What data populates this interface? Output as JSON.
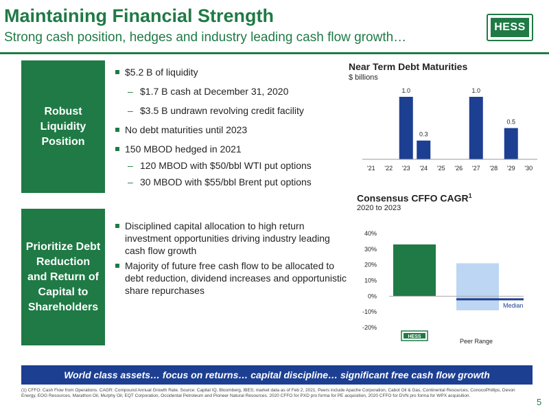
{
  "header": {
    "title": "Maintaining Financial Strength",
    "subtitle": "Strong cash position, hedges and industry leading cash flow growth…"
  },
  "logo": {
    "text": "HESS"
  },
  "sections": [
    {
      "label": "Robust Liquidity Position"
    },
    {
      "label": "Prioritize Debt Reduction and Return of Capital to Shareholders"
    }
  ],
  "liquidity_bullets": [
    {
      "level": 1,
      "text": "$5.2 B of liquidity"
    },
    {
      "level": 2,
      "text": "$1.7 B cash at December 31, 2020"
    },
    {
      "level": 2,
      "text": "$3.5 B undrawn revolving credit facility"
    },
    {
      "level": 1,
      "text": "No debt maturities until 2023"
    },
    {
      "level": 1,
      "text": "150 MBOD hedged in 2021"
    },
    {
      "level": 2,
      "text": "120 MBOD with $50/bbl WTI put options"
    },
    {
      "level": 2,
      "text": "30 MBOD with $55/bbl Brent put options"
    }
  ],
  "capital_bullets": [
    {
      "level": 1,
      "text": "Disciplined capital allocation to high return investment opportunities driving industry leading cash flow growth"
    },
    {
      "level": 1,
      "text": "Majority of future free cash flow to be allocated to debt reduction, dividend increases and opportunistic share repurchases"
    }
  ],
  "chart_data": [
    {
      "type": "bar",
      "title": "Near Term Debt Maturities",
      "subtitle": "$ billions",
      "categories": [
        "'21",
        "'22",
        "'23",
        "'24",
        "'25",
        "'26",
        "'27",
        "'28",
        "'29",
        "'30"
      ],
      "values": [
        0,
        0,
        1.0,
        0.3,
        0,
        0,
        1.0,
        0,
        0.5,
        0
      ],
      "data_labels": [
        "",
        "",
        "1.0",
        "0.3",
        "",
        "",
        "1.0",
        "",
        "0.5",
        ""
      ],
      "ylim": [
        0,
        1.0
      ],
      "bar_color": "#1d3f92"
    },
    {
      "type": "bar",
      "title": "Consensus CFFO CAGR",
      "title_superscript": "1",
      "subtitle": "2020 to 2023",
      "y_ticks": [
        "40%",
        "30%",
        "20%",
        "10%",
        "0%",
        "-10%",
        "-20%"
      ],
      "ylim": [
        -20,
        40
      ],
      "hess_value": 33,
      "peer_range": [
        -9,
        21
      ],
      "peer_median": -2,
      "median_label": "Median",
      "legend": {
        "company_logo_text": "HESS",
        "peer_label": "Peer Range"
      },
      "colors": {
        "hess": "#1f7a45",
        "peer": "#bcd6f3",
        "median": "#1d3f92"
      }
    }
  ],
  "banner": "World class assets… focus on returns… capital discipline… significant free cash flow growth",
  "footnote": "(1) CFFO: Cash Flow from Operations. CAGR: Compound Annual Growth Rate. Source: Capital IQ, Bloomberg, IBES; market data as of Feb 2, 2021. Peers include Apache Corporation, Cabot Oil & Gas, Continental Resources, ConocoPhillips, Devon Energy, EOG Resources, Marathon Oil, Murphy Oil, EQT Corporation, Occidental Petroleum and Pioneer Natural Resources. 2020 CFFO for PXD pro forma for PE acquisition, 2020 CFFO for DVN pro forma for WPX acquisition.",
  "page_number": "5",
  "colors": {
    "brand_green": "#1f7a45",
    "banner_blue": "#1d3f92"
  }
}
